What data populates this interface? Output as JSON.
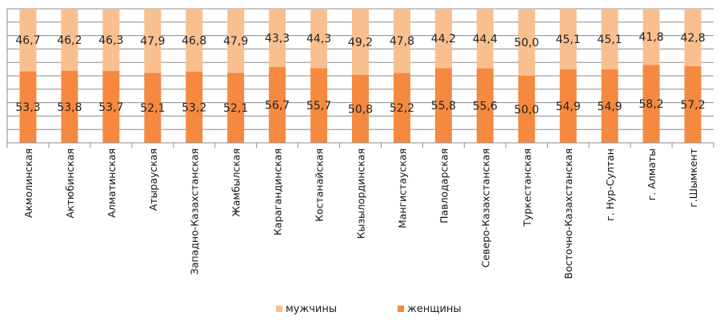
{
  "chart_data": {
    "type": "bar",
    "stacked": true,
    "percent_stacked": true,
    "categories": [
      "Акмолинская",
      "Актюбинская",
      "Алматинская",
      "Атырауская",
      "Западно-Казахстанская",
      "Жамбылская",
      "Карагандинская",
      "Костанайская",
      "Кызылординская",
      "Мангистауская",
      "Павлодарская",
      "Северо-Казахстанская",
      "Туркестанская",
      "Восточно-Казахстанская",
      "г. Нур-Султан",
      "г. Алматы",
      "г.Шымкент"
    ],
    "series": [
      {
        "name": "женщины",
        "color": "#F5893F",
        "values": [
          53.3,
          53.8,
          53.7,
          52.1,
          53.2,
          52.1,
          56.7,
          55.7,
          50.8,
          52.2,
          55.8,
          55.6,
          50.0,
          54.9,
          54.9,
          58.2,
          57.2
        ],
        "labels": [
          "53,3",
          "53,8",
          "53,7",
          "52,1",
          "53,2",
          "52,1",
          "56,7",
          "55,7",
          "50,8",
          "52,2",
          "55,8",
          "55,6",
          "50,0",
          "54,9",
          "54,9",
          "58,2",
          "57,2"
        ]
      },
      {
        "name": "мужчины",
        "color": "#F9BF8F",
        "values": [
          46.7,
          46.2,
          46.3,
          47.9,
          46.8,
          47.9,
          43.3,
          44.3,
          49.2,
          47.8,
          44.2,
          44.4,
          50.0,
          45.1,
          45.1,
          41.8,
          42.8
        ],
        "labels": [
          "46,7",
          "46,2",
          "46,3",
          "47,9",
          "46,8",
          "47,9",
          "43,3",
          "44,3",
          "49,2",
          "47,8",
          "44,2",
          "44,4",
          "50,0",
          "45,1",
          "45,1",
          "41,8",
          "42,8"
        ]
      }
    ],
    "ylim": [
      0,
      100
    ],
    "grid": true,
    "gridline_color": "#8C8C8C",
    "legend_position": "bottom",
    "legend_order": [
      "мужчины",
      "женщины"
    ]
  }
}
